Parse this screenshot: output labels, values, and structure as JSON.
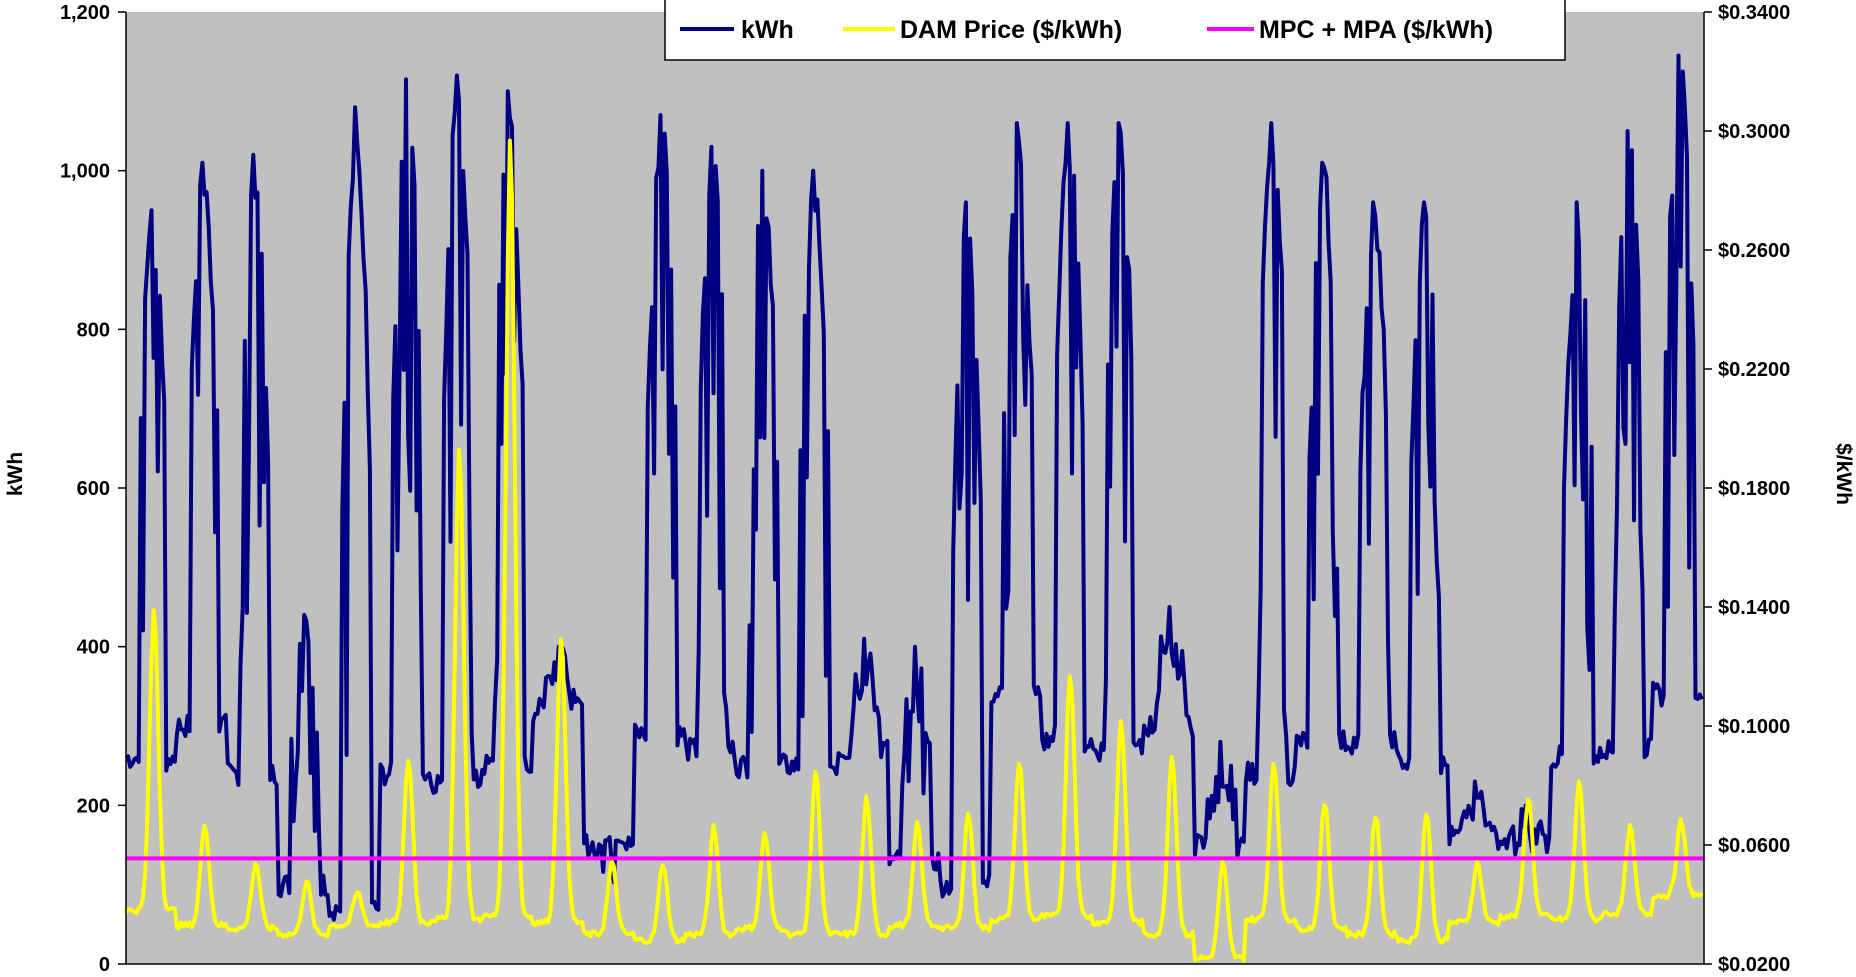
{
  "chart_data": {
    "type": "line",
    "title": "",
    "ylabel": "kWh",
    "y2label": "$/kWh",
    "ylim": [
      0,
      1200
    ],
    "y2lim": [
      0.02,
      0.34
    ],
    "yticks": [
      0,
      200,
      400,
      600,
      800,
      1000,
      1200
    ],
    "yticklabels": [
      "0",
      "200",
      "400",
      "600",
      "800",
      "1,000",
      "1,200"
    ],
    "y2ticks": [
      0.02,
      0.06,
      0.1,
      0.14,
      0.18,
      0.22,
      0.26,
      0.3,
      0.34
    ],
    "y2ticklabels": [
      "$0.0200",
      "$0.0600",
      "$0.1000",
      "$0.1400",
      "$0.1800",
      "$0.2200",
      "$0.2600",
      "$0.3000",
      "$0.3400"
    ],
    "grid": false,
    "plot_background": "#C0C0C0",
    "legend_position": "top-center",
    "x_days": 31,
    "series": [
      {
        "name": "kWh",
        "axis": "left",
        "color": "#000080",
        "daily_peaks": [
          950,
          1010,
          1020,
          440,
          1080,
          1115,
          1120,
          1100,
          400,
          160,
          1070,
          1030,
          1000,
          1000,
          410,
          400,
          960,
          1060,
          1060,
          1060,
          450,
          280,
          1060,
          1010,
          960,
          960,
          230,
          200,
          960,
          1050,
          1145
        ],
        "daily_lows": [
          260,
          300,
          240,
          100,
          70,
          240,
          230,
          250,
          320,
          150,
          290,
          270,
          250,
          250,
          270,
          130,
          100,
          340,
          280,
          270,
          300,
          150,
          240,
          280,
          280,
          250,
          160,
          155,
          260,
          270,
          340
        ]
      },
      {
        "name": "DAM Price ($/kWh)",
        "axis": "right",
        "color": "#FFFF00",
        "daily_peaks": [
          0.139,
          0.067,
          0.054,
          0.048,
          0.044,
          0.089,
          0.193,
          0.298,
          0.129,
          0.054,
          0.054,
          0.066,
          0.064,
          0.085,
          0.076,
          0.067,
          0.071,
          0.088,
          0.118,
          0.101,
          0.09,
          0.054,
          0.088,
          0.074,
          0.07,
          0.071,
          0.054,
          0.076,
          0.081,
          0.066,
          0.068
        ],
        "daily_lows": [
          0.038,
          0.033,
          0.032,
          0.03,
          0.033,
          0.034,
          0.035,
          0.036,
          0.034,
          0.03,
          0.028,
          0.03,
          0.032,
          0.03,
          0.03,
          0.033,
          0.032,
          0.035,
          0.036,
          0.034,
          0.03,
          0.022,
          0.035,
          0.032,
          0.03,
          0.028,
          0.034,
          0.036,
          0.035,
          0.037,
          0.043
        ]
      },
      {
        "name": "MPC + MPA ($/kWh)",
        "axis": "right",
        "color": "#FF00FF",
        "values": [
          0.0555
        ]
      }
    ]
  }
}
